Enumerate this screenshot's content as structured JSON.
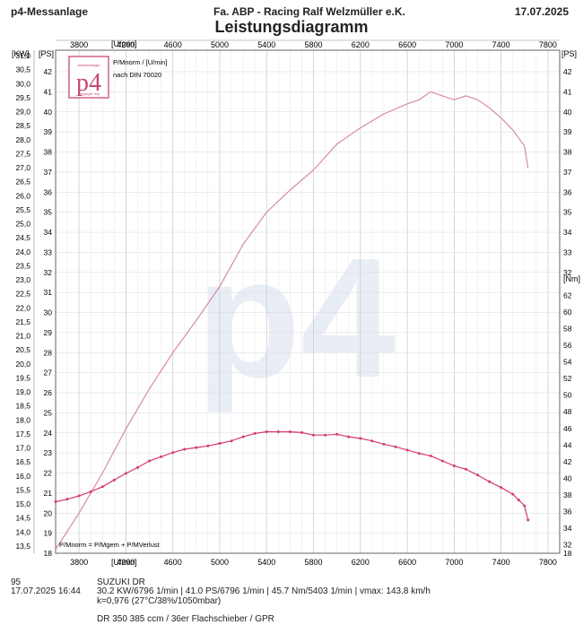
{
  "header": {
    "left": "p4-Messanlage",
    "center": "Fa. ABP - Racing  Ralf Welzmüller e.K.",
    "right": "17.07.2025",
    "title": "Leistungsdiagramm"
  },
  "logo": {
    "mark": "p4",
    "top_text": "Ametsedlinger",
    "bottom_text": "copyright *elp"
  },
  "legend": {
    "line1": "P/Mnorm / [U/min]",
    "line2": "nach DIN 70020",
    "bottom": "P/Mnorm = P/Mgem + P/MVerlust"
  },
  "watermark": "p4",
  "footer": {
    "run": "95",
    "datetime": "17.07.2025  16:44",
    "vehicle": "SUZUKI DR",
    "summary": "30.2 KW/6796 1/min  |  41.0 PS/6796 1/min  |  45.7 Nm/5403 1/min  |  vmax: 143.8 km/h",
    "conditions": "k=0,976 (27°C/38%/1050mbar)",
    "config": "DR 350 385 ccm / 36er Flachschieber / GPR"
  },
  "chart_data": {
    "type": "line",
    "x_axis": {
      "label": "[U/min]",
      "range": [
        3600,
        7900
      ],
      "ticks": [
        3800,
        4200,
        4600,
        5000,
        5400,
        5800,
        6200,
        6600,
        7000,
        7400,
        7800
      ],
      "tick_labels": [
        "3800",
        "4200",
        "4600",
        "5000",
        "5400",
        "5800",
        "6200",
        "6600",
        "7000",
        "7400",
        "7800"
      ]
    },
    "axes": {
      "kw": {
        "label": "[KW]",
        "range": [
          13.5,
          31.0
        ],
        "ticks": [
          13.5,
          14.0,
          14.5,
          15.0,
          15.5,
          16.0,
          16.5,
          17.0,
          17.5,
          18.0,
          18.5,
          19.0,
          19.5,
          20.0,
          20.5,
          21.0,
          21.5,
          22.0,
          22.5,
          23.0,
          23.5,
          24.0,
          24.5,
          25.0,
          25.5,
          26.0,
          26.5,
          27.0,
          27.5,
          28.0,
          28.5,
          29.0,
          29.5,
          30.0,
          30.5,
          31.0
        ],
        "tick_labels": [
          "13,5",
          "14,0",
          "14,5",
          "15,0",
          "15,5",
          "16,0",
          "16,5",
          "17,0",
          "17,5",
          "18,0",
          "18,5",
          "19,0",
          "19,5",
          "20,0",
          "20,5",
          "21,0",
          "21,5",
          "22,0",
          "22,5",
          "23,0",
          "23,5",
          "24,0",
          "24,5",
          "25,0",
          "25,5",
          "26,0",
          "26,5",
          "27,0",
          "27,5",
          "28,0",
          "28,5",
          "29,0",
          "29,5",
          "30,0",
          "30,5",
          "31,0"
        ]
      },
      "ps": {
        "label": "[PS]",
        "range": [
          18,
          42
        ],
        "ticks": [
          18,
          19,
          20,
          21,
          22,
          23,
          24,
          25,
          26,
          27,
          28,
          29,
          30,
          31,
          32,
          33,
          34,
          35,
          36,
          37,
          38,
          39,
          40,
          41,
          42
        ],
        "tick_labels": [
          "18",
          "19",
          "20",
          "21",
          "22",
          "23",
          "24",
          "25",
          "26",
          "27",
          "28",
          "29",
          "30",
          "31",
          "32",
          "33",
          "34",
          "35",
          "36",
          "37",
          "38",
          "39",
          "40",
          "41",
          "42"
        ]
      },
      "nm": {
        "label": "[Nm]",
        "range": [
          31,
          63
        ],
        "ticks": [
          32,
          34,
          36,
          38,
          40,
          42,
          44,
          46,
          48,
          50,
          52,
          54,
          56,
          58,
          60,
          62
        ],
        "tick_labels": [
          "32",
          "34",
          "36",
          "38",
          "40",
          "42",
          "44",
          "46",
          "48",
          "50",
          "52",
          "54",
          "56",
          "58",
          "60",
          "62"
        ]
      }
    },
    "grid": true,
    "series": [
      {
        "axis": "ps",
        "color": "#d98aa3",
        "markers": false,
        "x": [
          3600,
          3800,
          4000,
          4200,
          4400,
          4600,
          4800,
          5000,
          5200,
          5400,
          5600,
          5800,
          6000,
          6200,
          6400,
          6600,
          6700,
          6800,
          6900,
          7000,
          7100,
          7200,
          7300,
          7400,
          7500,
          7600,
          7630
        ],
        "y": [
          18.2,
          20.0,
          22.0,
          24.2,
          26.2,
          28.0,
          29.6,
          31.3,
          33.4,
          35.0,
          36.1,
          37.1,
          38.4,
          39.2,
          39.9,
          40.4,
          40.6,
          41.0,
          40.8,
          40.6,
          40.8,
          40.6,
          40.2,
          39.7,
          39.1,
          38.3,
          37.2
        ]
      },
      {
        "axis": "nm",
        "color": "#d63c6a",
        "markers": true,
        "x": [
          3600,
          3700,
          3800,
          3900,
          4000,
          4100,
          4200,
          4300,
          4400,
          4500,
          4600,
          4700,
          4800,
          4900,
          5000,
          5100,
          5200,
          5300,
          5400,
          5500,
          5600,
          5700,
          5800,
          5900,
          6000,
          6100,
          6200,
          6300,
          6400,
          6500,
          6600,
          6700,
          6800,
          6900,
          7000,
          7100,
          7200,
          7300,
          7400,
          7500,
          7550,
          7600,
          7630
        ],
        "y": [
          37.2,
          37.5,
          37.9,
          38.4,
          39.0,
          39.8,
          40.6,
          41.3,
          42.1,
          42.6,
          43.1,
          43.5,
          43.7,
          43.9,
          44.2,
          44.5,
          45.0,
          45.4,
          45.6,
          45.6,
          45.6,
          45.5,
          45.2,
          45.2,
          45.3,
          45.0,
          44.8,
          44.5,
          44.1,
          43.8,
          43.4,
          43.0,
          42.7,
          42.1,
          41.5,
          41.1,
          40.4,
          39.6,
          38.9,
          38.1,
          37.4,
          36.7,
          35.0
        ]
      }
    ]
  }
}
